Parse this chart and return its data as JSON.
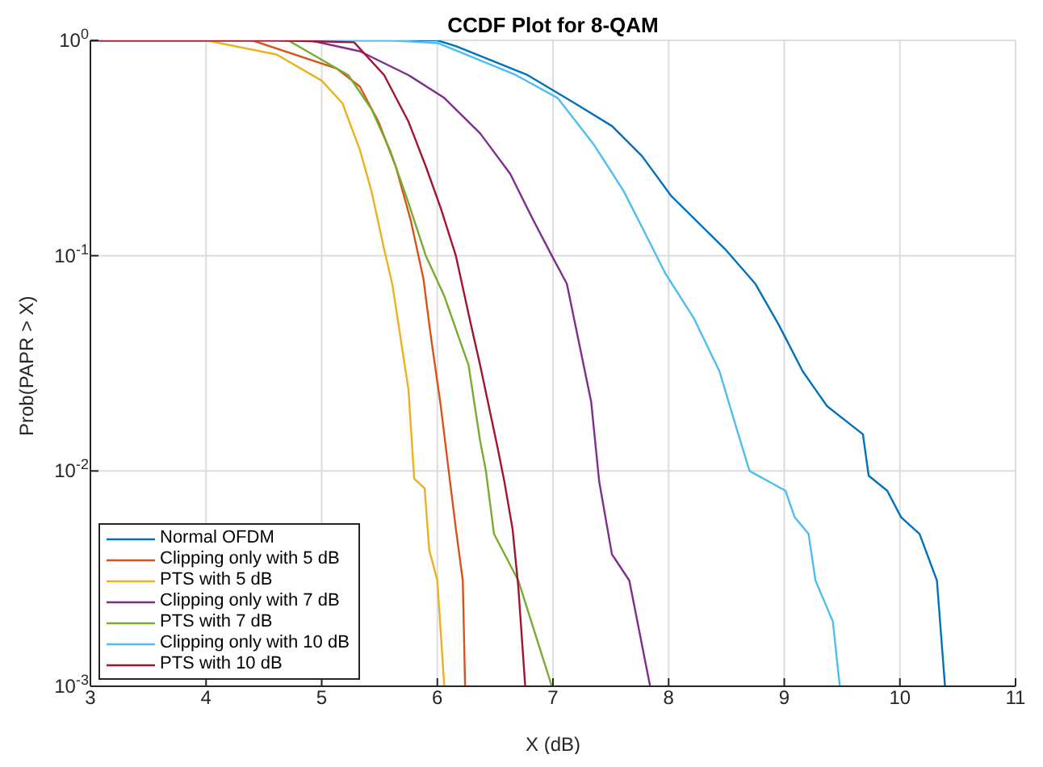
{
  "chart_data": {
    "type": "line",
    "title": "CCDF Plot for 8-QAM",
    "xlabel": "X (dB)",
    "ylabel": "Prob(PAPR > X)",
    "xlim": [
      3,
      11
    ],
    "xticks": [
      3,
      4,
      5,
      6,
      7,
      8,
      9,
      10,
      11
    ],
    "ylim": [
      0.001,
      1
    ],
    "yticks": [
      {
        "value": 0.001,
        "label": "10$^{-3}$"
      },
      {
        "value": 0.01,
        "label": "10$^{-2}$"
      },
      {
        "value": 0.1,
        "label": "10$^{-1}$"
      },
      {
        "value": 1,
        "label": "10$^{0}$"
      }
    ],
    "log": "y",
    "grid": true,
    "legend": "bottom left",
    "marker": "none",
    "line_style": "solid",
    "series": [
      {
        "name": "Normal OFDM",
        "color": "#0072bd",
        "x": [
          3,
          6.0,
          6.16,
          6.78,
          7.19,
          7.51,
          7.77,
          8.02,
          8.49,
          8.75,
          8.95,
          9.16,
          9.37,
          9.68,
          9.73,
          9.89,
          10.01,
          10.17,
          10.32,
          10.39
        ],
        "values": [
          1,
          1,
          0.94,
          0.69,
          0.51,
          0.4,
          0.29,
          0.19,
          0.107,
          0.074,
          0.048,
          0.029,
          0.02,
          0.0148,
          0.0095,
          0.0081,
          0.0061,
          0.0051,
          0.0031,
          0.001
        ]
      },
      {
        "name": "Clipping only with 5 dB",
        "color": "#d95319",
        "x": [
          3,
          4.4,
          5.13,
          5.33,
          5.49,
          5.64,
          5.77,
          5.88,
          5.93,
          5.95,
          6.03,
          6.11,
          6.16,
          6.22,
          6.24
        ],
        "values": [
          1,
          1,
          0.74,
          0.61,
          0.42,
          0.26,
          0.146,
          0.078,
          0.048,
          0.04,
          0.02,
          0.0089,
          0.0054,
          0.0031,
          0.001
        ]
      },
      {
        "name": "PTS with 5 dB",
        "color": "#edb120",
        "x": [
          3,
          4.0,
          4.61,
          5.0,
          5.18,
          5.33,
          5.43,
          5.54,
          5.61,
          5.75,
          5.8,
          5.89,
          5.93,
          6.0,
          6.06
        ],
        "values": [
          1,
          1,
          0.86,
          0.65,
          0.51,
          0.31,
          0.2,
          0.107,
          0.074,
          0.024,
          0.0092,
          0.0083,
          0.0043,
          0.0031,
          0.001
        ]
      },
      {
        "name": "Clipping only with 7 dB",
        "color": "#7e2f8e",
        "x": [
          3,
          4.9,
          5.33,
          5.75,
          6.06,
          6.37,
          6.63,
          6.83,
          6.99,
          7.12,
          7.33,
          7.4,
          7.51,
          7.66,
          7.84
        ],
        "values": [
          1,
          1,
          0.89,
          0.69,
          0.54,
          0.37,
          0.24,
          0.146,
          0.1,
          0.074,
          0.021,
          0.0089,
          0.0041,
          0.0031,
          0.001
        ]
      },
      {
        "name": "PTS with 7 dB",
        "color": "#77ac30",
        "x": [
          3,
          4.71,
          5.23,
          5.43,
          5.59,
          5.75,
          5.9,
          6.06,
          6.27,
          6.37,
          6.42,
          6.49,
          6.7,
          6.99
        ],
        "values": [
          1,
          1,
          0.69,
          0.48,
          0.31,
          0.176,
          0.1,
          0.065,
          0.031,
          0.0138,
          0.01,
          0.0051,
          0.0031,
          0.001
        ]
      },
      {
        "name": "Clipping only with 10 dB",
        "color": "#4dbeee",
        "x": [
          3,
          5.6,
          6.01,
          6.68,
          7.04,
          7.35,
          7.61,
          7.82,
          7.97,
          8.22,
          8.44,
          8.59,
          8.7,
          9.01,
          9.09,
          9.21,
          9.27,
          9.42,
          9.48
        ],
        "values": [
          1,
          1,
          0.97,
          0.69,
          0.54,
          0.33,
          0.2,
          0.12,
          0.083,
          0.051,
          0.029,
          0.0156,
          0.01,
          0.0081,
          0.0061,
          0.0051,
          0.0031,
          0.002,
          0.001
        ]
      },
      {
        "name": "PTS with 10 dB",
        "color": "#a2142f",
        "x": [
          3,
          4.6,
          5.28,
          5.54,
          5.75,
          5.9,
          6.03,
          6.16,
          6.29,
          6.37,
          6.52,
          6.58,
          6.65,
          6.7,
          6.76
        ],
        "values": [
          1,
          1,
          0.98,
          0.69,
          0.42,
          0.26,
          0.166,
          0.1,
          0.048,
          0.031,
          0.0129,
          0.0089,
          0.0054,
          0.0029,
          0.001
        ]
      }
    ]
  }
}
